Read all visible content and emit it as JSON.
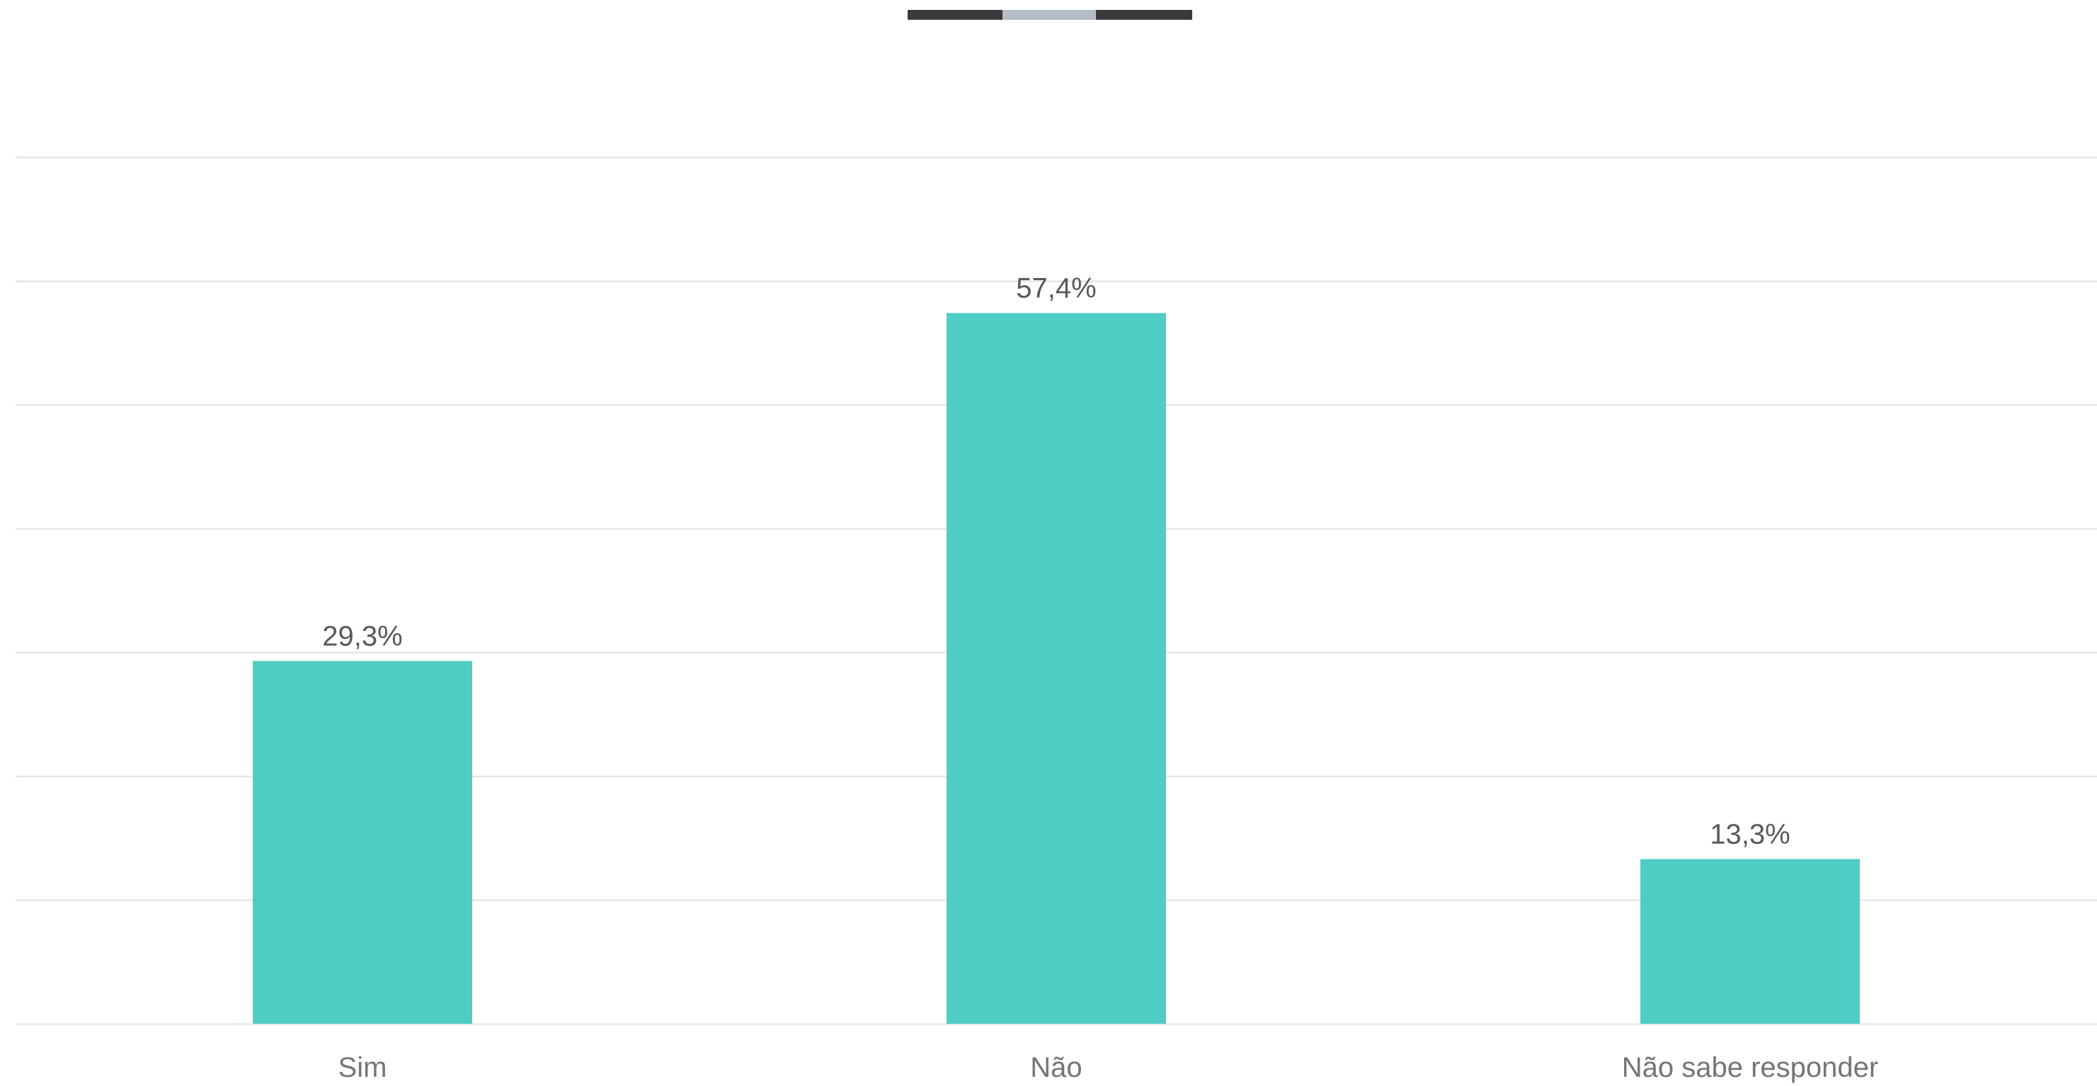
{
  "chart_data": {
    "type": "bar",
    "categories": [
      "Sim",
      "Não",
      "Não sabe responder"
    ],
    "values": [
      29.3,
      57.4,
      13.3
    ],
    "data_labels": [
      "29,3%",
      "57,4%",
      "13,3%"
    ],
    "unit": "%",
    "ylim": [
      0,
      70
    ],
    "ytick_step": 10,
    "grid": true,
    "legend": "top-center",
    "title": "",
    "xlabel": "",
    "ylabel": ""
  },
  "colors": {
    "bar": "#4ECDC4",
    "grid": "#E0E0E0",
    "legend_segments": [
      "#3A3A3C",
      "#B4BCC6",
      "#3A3A3C"
    ]
  }
}
